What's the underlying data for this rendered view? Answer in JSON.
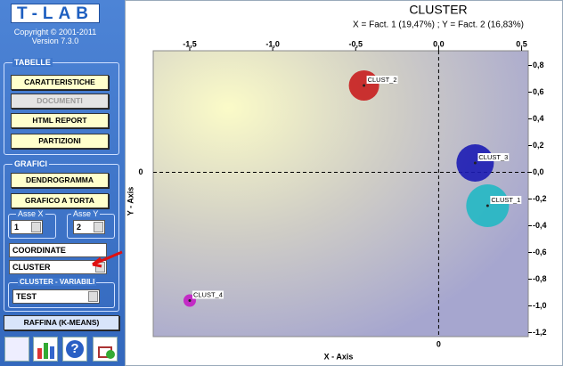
{
  "sidebar": {
    "logo": "T-LAB",
    "copyright": "Copyright © 2001-2011",
    "version": "Version 7.3.0",
    "tabelle": {
      "title": "TABELLE",
      "buttons": [
        "CARATTERISTICHE",
        "DOCUMENTI",
        "HTML REPORT",
        "PARTIZIONI"
      ]
    },
    "grafici": {
      "title": "GRAFICI",
      "buttons": [
        "DENDROGRAMMA",
        "GRAFICO A TORTA"
      ],
      "asse_x": {
        "label": "Asse X",
        "value": "1"
      },
      "asse_y": {
        "label": "Asse Y",
        "value": "2"
      },
      "field": "COORDINATE",
      "select": "CLUSTER",
      "group": {
        "title": "CLUSTER - VARIABILI",
        "value": "TEST"
      }
    },
    "refine_button": "RAFFINA (K-MEANS)"
  },
  "chart_data": {
    "type": "scatter",
    "title": "CLUSTER",
    "subtitle": "X = Fact. 1 (19,47%) ; Y = Fact. 2 (16,83%)",
    "x_label": "X - Axis",
    "y_label": "Y - Axis",
    "x_zero_label": "0",
    "y_zero_label": "0",
    "xlim": [
      -1.72,
      0.54
    ],
    "ylim": [
      -1.23,
      0.91
    ],
    "xticks": [
      {
        "value": -1.5,
        "label": "-1,5"
      },
      {
        "value": -1.0,
        "label": "-1,0"
      },
      {
        "value": -0.5,
        "label": "-0,5"
      },
      {
        "value": 0,
        "label": "0,0"
      },
      {
        "value": 0.5,
        "label": "0,5"
      }
    ],
    "yticks": [
      {
        "value": 0.8,
        "label": "0,8"
      },
      {
        "value": 0.6,
        "label": "0,6"
      },
      {
        "value": 0.4,
        "label": "0,4"
      },
      {
        "value": 0.2,
        "label": "0,2"
      },
      {
        "value": 0,
        "label": "0,0"
      },
      {
        "value": -0.2,
        "label": "-0,2"
      },
      {
        "value": -0.4,
        "label": "-0,4"
      },
      {
        "value": -0.6,
        "label": "-0,6"
      },
      {
        "value": -0.8,
        "label": "-0,8"
      },
      {
        "value": -1.0,
        "label": "-1,0"
      },
      {
        "value": -1.2,
        "label": "-1,2"
      }
    ],
    "series": [
      {
        "name": "CLUST_1",
        "color": "#22b8c4",
        "x": [
          0.295
        ],
        "values": [
          -0.25
        ],
        "sizes": [
          24
        ]
      },
      {
        "name": "CLUST_2",
        "color": "#c81e1e",
        "x": [
          -0.45
        ],
        "values": [
          0.65
        ],
        "sizes": [
          17
        ]
      },
      {
        "name": "CLUST_3",
        "color": "#1c1cb4",
        "x": [
          0.22
        ],
        "values": [
          0.07
        ],
        "sizes": [
          21
        ]
      },
      {
        "name": "CLUST_4",
        "color": "#c41cc4",
        "x": [
          -1.5
        ],
        "values": [
          -0.96
        ],
        "sizes": [
          7
        ]
      }
    ]
  }
}
